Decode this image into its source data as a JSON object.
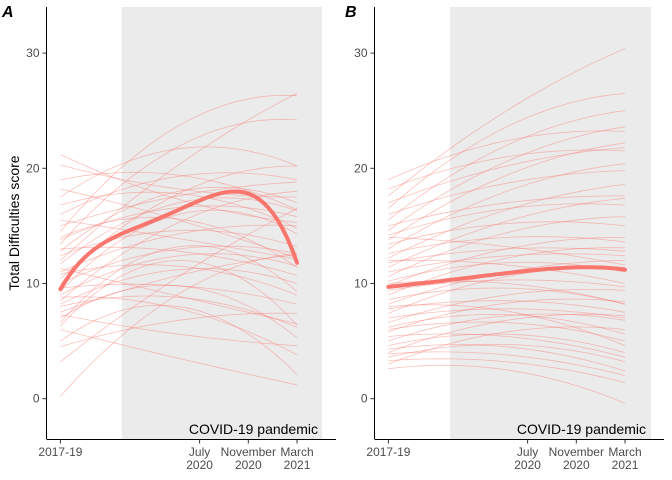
{
  "chart_data": [
    {
      "panel_tag": "A",
      "type": "line",
      "ylabel": "Total Difficulties score",
      "xlabel": "",
      "x_ticks": [
        {
          "label_lines": [
            "2017-19"
          ],
          "value": 0
        },
        {
          "label_lines": [
            "July",
            "2020"
          ],
          "value": 1
        },
        {
          "label_lines": [
            "November",
            "2020"
          ],
          "value": 1.35
        },
        {
          "label_lines": [
            "March",
            "2021"
          ],
          "value": 1.7
        }
      ],
      "y_ticks": [
        0,
        10,
        20,
        30
      ],
      "ylim": [
        -3.5,
        34
      ],
      "xlim": [
        -0.1,
        1.98
      ],
      "shaded_region": {
        "x_from": 0.85,
        "x_to": 1.98,
        "label": "COVID-19 pandemic",
        "color": "#ebebeb"
      },
      "line_color": "#f8766d",
      "mean_curve": {
        "x": [
          0,
          0.85,
          1,
          1.35,
          1.7
        ],
        "y": [
          9.5,
          16.4,
          17.2,
          17.8,
          11.8
        ]
      },
      "individual_curves": [
        {
          "y": [
            0.2,
            9.1,
            12.6
          ]
        },
        {
          "y": [
            3.2,
            10.6,
            16.5
          ]
        },
        {
          "y": [
            5.0,
            8.0,
            2.1
          ]
        },
        {
          "y": [
            6.0,
            3.5,
            1.2
          ]
        },
        {
          "y": [
            6.6,
            13.2,
            9.3
          ]
        },
        {
          "y": [
            7.0,
            9.8,
            5.3
          ]
        },
        {
          "y": [
            7.3,
            5.6,
            4.6
          ]
        },
        {
          "y": [
            7.5,
            10.7,
            12.5
          ]
        },
        {
          "y": [
            8.0,
            8.8,
            6.2
          ]
        },
        {
          "y": [
            8.2,
            11.2,
            10.0
          ]
        },
        {
          "y": [
            8.5,
            15.3,
            18.0
          ]
        },
        {
          "y": [
            8.8,
            7.8,
            3.8
          ]
        },
        {
          "y": [
            9.0,
            12.4,
            11.5
          ]
        },
        {
          "y": [
            9.3,
            16.0,
            14.3
          ]
        },
        {
          "y": [
            9.6,
            9.8,
            8.2
          ]
        },
        {
          "y": [
            10.0,
            13.0,
            12.6
          ]
        },
        {
          "y": [
            10.4,
            17.8,
            20.2
          ]
        },
        {
          "y": [
            10.8,
            11.5,
            9.0
          ]
        },
        {
          "y": [
            11.0,
            14.3,
            15.0
          ]
        },
        {
          "y": [
            11.3,
            8.9,
            6.5
          ]
        },
        {
          "y": [
            11.7,
            17.0,
            16.3
          ]
        },
        {
          "y": [
            12.0,
            20.3,
            26.5
          ]
        },
        {
          "y": [
            12.4,
            14.6,
            13.2
          ]
        },
        {
          "y": [
            12.8,
            18.0,
            17.0
          ]
        },
        {
          "y": [
            13.0,
            12.8,
            10.7
          ]
        },
        {
          "y": [
            13.4,
            21.9,
            24.2
          ]
        },
        {
          "y": [
            13.8,
            16.6,
            15.8
          ]
        },
        {
          "y": [
            14.0,
            15.6,
            11.4
          ]
        },
        {
          "y": [
            14.5,
            23.7,
            26.3
          ]
        },
        {
          "y": [
            15.0,
            17.6,
            18.8
          ]
        },
        {
          "y": [
            15.5,
            13.9,
            12.1
          ]
        },
        {
          "y": [
            16.0,
            19.3,
            19.0
          ]
        },
        {
          "y": [
            16.8,
            17.8,
            14.8
          ]
        },
        {
          "y": [
            17.5,
            21.7,
            20.2
          ]
        },
        {
          "y": [
            18.2,
            15.5,
            12.2
          ]
        },
        {
          "y": [
            19.0,
            19.4,
            16.4
          ]
        },
        {
          "y": [
            20.3,
            18.2,
            17.5
          ]
        },
        {
          "y": [
            21.2,
            17.3,
            15.3
          ]
        },
        {
          "y": [
            6.3,
            12.0,
            6.4
          ]
        },
        {
          "y": [
            4.5,
            6.8,
            7.4
          ]
        }
      ]
    },
    {
      "panel_tag": "B",
      "type": "line",
      "ylabel": "",
      "xlabel": "",
      "x_ticks": [
        {
          "label_lines": [
            "2017-19"
          ],
          "value": 0
        },
        {
          "label_lines": [
            "July",
            "2020"
          ],
          "value": 1
        },
        {
          "label_lines": [
            "November",
            "2020"
          ],
          "value": 1.35
        },
        {
          "label_lines": [
            "March",
            "2021"
          ],
          "value": 1.7
        }
      ],
      "y_ticks": [
        0,
        10,
        20,
        30
      ],
      "ylim": [
        -3.5,
        34
      ],
      "xlim": [
        -0.1,
        1.98
      ],
      "shaded_region": {
        "x_from": 0.85,
        "x_to": 1.98,
        "label": "COVID-19 pandemic",
        "color": "#ebebeb"
      },
      "line_color": "#f8766d",
      "mean_curve": {
        "x": [
          0,
          0.85,
          1,
          1.35,
          1.7
        ],
        "y": [
          9.7,
          10.9,
          11.1,
          11.4,
          11.2
        ]
      },
      "individual_curves": [
        {
          "y": [
            2.6,
            2.5,
            -0.4
          ]
        },
        {
          "y": [
            3.0,
            5.8,
            6.0
          ]
        },
        {
          "y": [
            3.3,
            3.2,
            1.4
          ]
        },
        {
          "y": [
            3.6,
            4.7,
            3.2
          ]
        },
        {
          "y": [
            4.0,
            6.8,
            7.2
          ]
        },
        {
          "y": [
            4.3,
            4.5,
            2.4
          ]
        },
        {
          "y": [
            4.6,
            5.6,
            4.0
          ]
        },
        {
          "y": [
            5.0,
            7.2,
            6.8
          ]
        },
        {
          "y": [
            5.4,
            5.4,
            3.6
          ]
        },
        {
          "y": [
            5.8,
            8.3,
            8.4
          ]
        },
        {
          "y": [
            6.2,
            7.3,
            5.6
          ]
        },
        {
          "y": [
            6.6,
            9.0,
            9.4
          ]
        },
        {
          "y": [
            7.0,
            7.8,
            7.0
          ]
        },
        {
          "y": [
            7.4,
            10.6,
            11.4
          ]
        },
        {
          "y": [
            7.8,
            8.5,
            7.5
          ]
        },
        {
          "y": [
            8.2,
            11.0,
            12.0
          ]
        },
        {
          "y": [
            8.6,
            9.6,
            8.2
          ]
        },
        {
          "y": [
            9.0,
            12.2,
            13.1
          ]
        },
        {
          "y": [
            9.4,
            10.3,
            9.7
          ]
        },
        {
          "y": [
            9.8,
            13.0,
            14.0
          ]
        },
        {
          "y": [
            10.2,
            11.8,
            11.0
          ]
        },
        {
          "y": [
            10.6,
            14.4,
            15.8
          ]
        },
        {
          "y": [
            11.0,
            12.4,
            12.4
          ]
        },
        {
          "y": [
            11.4,
            15.4,
            17.4
          ]
        },
        {
          "y": [
            11.8,
            13.0,
            12.8
          ]
        },
        {
          "y": [
            12.2,
            16.4,
            18.6
          ]
        },
        {
          "y": [
            12.6,
            14.0,
            13.6
          ]
        },
        {
          "y": [
            13.0,
            18.0,
            20.4
          ]
        },
        {
          "y": [
            13.4,
            15.2,
            15.0
          ]
        },
        {
          "y": [
            13.8,
            19.4,
            22.2
          ]
        },
        {
          "y": [
            14.2,
            16.5,
            16.8
          ]
        },
        {
          "y": [
            14.6,
            20.6,
            23.6
          ]
        },
        {
          "y": [
            15.0,
            17.0,
            17.6
          ]
        },
        {
          "y": [
            15.5,
            22.0,
            25.0
          ]
        },
        {
          "y": [
            16.0,
            18.7,
            19.8
          ]
        },
        {
          "y": [
            16.5,
            23.6,
            26.5
          ]
        },
        {
          "y": [
            17.0,
            20.2,
            21.8
          ]
        },
        {
          "y": [
            17.6,
            25.0,
            30.4
          ]
        },
        {
          "y": [
            18.2,
            21.0,
            21.5
          ]
        },
        {
          "y": [
            19.0,
            22.4,
            23.2
          ]
        },
        {
          "y": [
            3.9,
            3.8,
            2.0
          ]
        },
        {
          "y": [
            8.0,
            7.6,
            4.6
          ]
        },
        {
          "y": [
            10.0,
            10.0,
            8.2
          ]
        },
        {
          "y": [
            12.0,
            11.6,
            10.0
          ]
        },
        {
          "y": [
            14.0,
            13.2,
            11.6
          ]
        },
        {
          "y": [
            6.0,
            6.6,
            5.0
          ]
        }
      ]
    }
  ]
}
